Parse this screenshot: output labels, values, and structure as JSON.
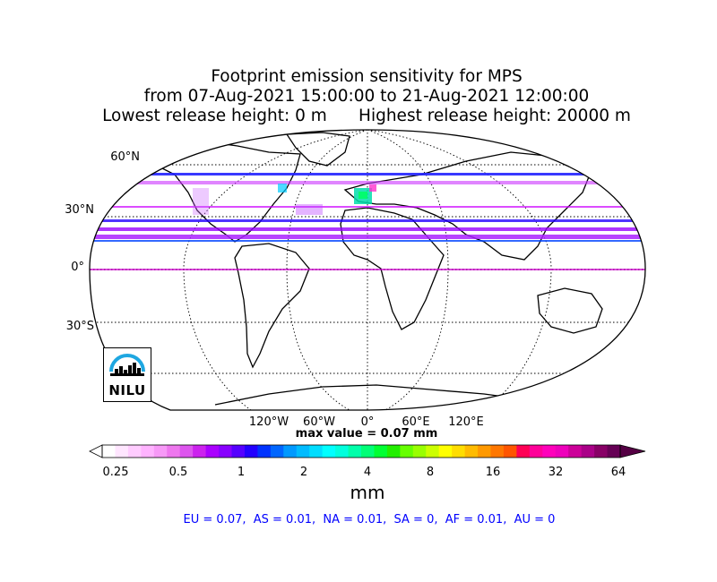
{
  "title": {
    "line1": "Footprint emission sensitivity for MPS",
    "line2": "from 07-Aug-2021 15:00:00 to 21-Aug-2021 12:00:00",
    "line3": "Lowest release height: 0 m      Highest release height: 20000 m"
  },
  "map": {
    "projection": "Robinson",
    "lat_labels": [
      "60°N",
      "30°N",
      "0°",
      "30°S"
    ],
    "lon_labels": [
      "120°W",
      "60°W",
      "0°",
      "60°E",
      "120°E"
    ],
    "max_value_text": "max value = 0.07 mm"
  },
  "colorbar": {
    "tick_labels": [
      "0.25",
      "0.5",
      "1",
      "2",
      "4",
      "8",
      "16",
      "32",
      "64"
    ],
    "unit": "mm",
    "colors": [
      "#ffffff",
      "#ffe6ff",
      "#ffccff",
      "#ffb3ff",
      "#f799f7",
      "#ee77ee",
      "#dd55ee",
      "#cc22ee",
      "#aa00ff",
      "#8800ff",
      "#5500ff",
      "#2200ff",
      "#0033ff",
      "#0066ff",
      "#0099ff",
      "#00bbff",
      "#00ddff",
      "#00ffff",
      "#00ffdd",
      "#00ffaa",
      "#00ff77",
      "#00ff33",
      "#22ee00",
      "#66ff00",
      "#99ff00",
      "#ccff00",
      "#ffff00",
      "#ffdd00",
      "#ffbb00",
      "#ff9900",
      "#ff7700",
      "#ff5500",
      "#ff0055",
      "#ff0099",
      "#ff00bb",
      "#ee00bb",
      "#cc0099",
      "#aa0088",
      "#880066",
      "#660055"
    ]
  },
  "summary": "EU = 0.07,  AS = 0.01,  NA = 0.01,  SA = 0,  AF = 0.01,  AU = 0",
  "logo": {
    "text": "NILU"
  }
}
